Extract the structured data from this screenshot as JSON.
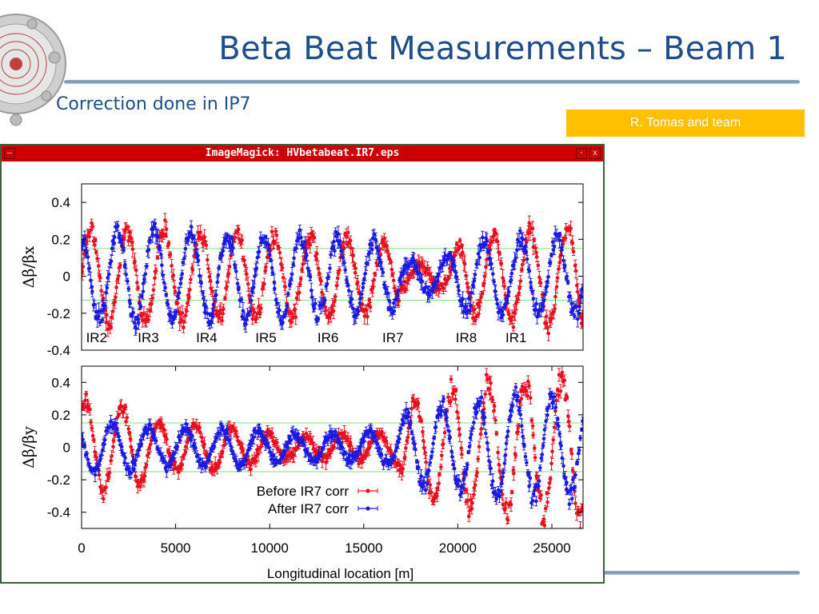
{
  "slide": {
    "title": "Beta Beat Measurements – Beam 1",
    "subtitle": "Correction done in IP7",
    "author": "R. Tomas and team",
    "title_color": "#1f4e8a",
    "author_bg": "#ffc000",
    "logo_icon": "lhc-logo-icon"
  },
  "window": {
    "title": "ImageMagick: HVbetabeat.IR7.eps",
    "titlebar_color": "#cc0000",
    "menu_icon": "window-menu-icon",
    "minimize_icon": "minimize-icon",
    "close_icon": "close-icon"
  },
  "chart_data": [
    {
      "type": "scatter",
      "ylabel": "Δβ/βx",
      "xlim": [
        0,
        26659
      ],
      "ylim": [
        -0.4,
        0.5
      ],
      "yticks": [
        "0.4",
        "0.2",
        "0",
        "-0.2",
        "-0.4"
      ],
      "ytick_values": [
        0.4,
        0.2,
        0,
        -0.2,
        -0.4
      ],
      "reference_lines": [
        0.15,
        -0.13
      ],
      "ir_labels": [
        {
          "label": "IR2",
          "x": 800
        },
        {
          "label": "IR3",
          "x": 3550
        },
        {
          "label": "IR4",
          "x": 6650
        },
        {
          "label": "IR5",
          "x": 9800
        },
        {
          "label": "IR6",
          "x": 13100
        },
        {
          "label": "IR7",
          "x": 16550
        },
        {
          "label": "IR8",
          "x": 20450
        },
        {
          "label": "IR1",
          "x": 23100
        }
      ],
      "series": [
        {
          "name": "Before IR7 corr",
          "color": "#e8101e",
          "envelope": [
            [
              0,
              0.26
            ],
            [
              3000,
              0.28
            ],
            [
              6000,
              0.26
            ],
            [
              9000,
              0.24
            ],
            [
              12000,
              0.24
            ],
            [
              15000,
              0.22
            ],
            [
              16800,
              0.2
            ],
            [
              17000,
              0.06
            ],
            [
              19500,
              0.08
            ],
            [
              20300,
              0.22
            ],
            [
              23000,
              0.25
            ],
            [
              26500,
              0.3
            ]
          ]
        },
        {
          "name": "After IR7 corr",
          "color": "#1a1ae0",
          "envelope": [
            [
              0,
              0.25
            ],
            [
              3000,
              0.27
            ],
            [
              6000,
              0.25
            ],
            [
              9000,
              0.24
            ],
            [
              12000,
              0.23
            ],
            [
              15000,
              0.21
            ],
            [
              16800,
              0.18
            ],
            [
              17000,
              0.08
            ],
            [
              19500,
              0.12
            ],
            [
              20300,
              0.2
            ],
            [
              23000,
              0.22
            ],
            [
              26500,
              0.22
            ]
          ]
        }
      ]
    },
    {
      "type": "scatter",
      "ylabel": "Δβ/βy",
      "xlabel": "Longitudinal location [m]",
      "xlim": [
        0,
        26659
      ],
      "ylim": [
        -0.5,
        0.5
      ],
      "xticks": [
        "0",
        "5000",
        "10000",
        "15000",
        "20000",
        "25000"
      ],
      "xtick_values": [
        0,
        5000,
        10000,
        15000,
        20000,
        25000
      ],
      "yticks": [
        "0.4",
        "0.2",
        "0",
        "-0.2",
        "-0.4"
      ],
      "ytick_values": [
        0.4,
        0.2,
        0,
        -0.2,
        -0.4
      ],
      "reference_lines": [
        0.15,
        -0.15
      ],
      "legend_position": "bottom-center",
      "series": [
        {
          "name": "Before IR7 corr",
          "color": "#e8101e",
          "envelope": [
            [
              0,
              0.3
            ],
            [
              3000,
              0.26
            ],
            [
              4000,
              0.16
            ],
            [
              8000,
              0.13
            ],
            [
              11000,
              0.07
            ],
            [
              15000,
              0.08
            ],
            [
              16800,
              0.1
            ],
            [
              17200,
              0.3
            ],
            [
              20000,
              0.4
            ],
            [
              23000,
              0.44
            ],
            [
              26500,
              0.45
            ]
          ]
        },
        {
          "name": "After IR7 corr",
          "color": "#1a1ae0",
          "envelope": [
            [
              0,
              0.18
            ],
            [
              3000,
              0.14
            ],
            [
              4000,
              0.12
            ],
            [
              8000,
              0.13
            ],
            [
              11000,
              0.09
            ],
            [
              15000,
              0.09
            ],
            [
              16800,
              0.12
            ],
            [
              17200,
              0.22
            ],
            [
              20000,
              0.3
            ],
            [
              23000,
              0.33
            ],
            [
              26500,
              0.32
            ]
          ]
        }
      ]
    }
  ]
}
